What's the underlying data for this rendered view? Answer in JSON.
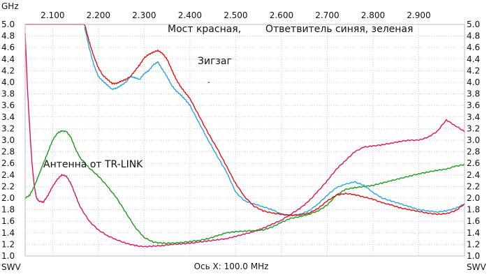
{
  "chart_data": {
    "type": "line",
    "top_axis_unit": "GHz",
    "xlabel": "Ось X: 100.0 MHz",
    "ylabel_left": "SWV",
    "ylabel_right": "SWV",
    "xlim": [
      2.04,
      3.0
    ],
    "ylim": [
      1.0,
      5.0
    ],
    "x_ticks": [
      2.1,
      2.2,
      2.3,
      2.4,
      2.5,
      2.6,
      2.7,
      2.8,
      2.9
    ],
    "x_tick_labels": [
      "2.100",
      "2.200",
      "2.300",
      "2.400",
      "2.500",
      "2.600",
      "2.700",
      "2.800",
      "2.900"
    ],
    "y_ticks": [
      1.0,
      1.2,
      1.4,
      1.6,
      1.8,
      2.0,
      2.2,
      2.4,
      2.6,
      2.8,
      3.0,
      3.2,
      3.4,
      3.6,
      3.8,
      4.0,
      4.2,
      4.4,
      4.6,
      4.8,
      5.0
    ],
    "y_tick_labels": [
      "1.0",
      "1.2",
      "1.4",
      "1.6",
      "1.8",
      "2.0",
      "2.2",
      "2.4",
      "2.6",
      "2.8",
      "3.0",
      "3.2",
      "3.4",
      "3.6",
      "3.8",
      "4.0",
      "4.2",
      "4.4",
      "4.6",
      "4.8",
      "5.0"
    ],
    "grid": true,
    "annotations": [
      "Мост красная,",
      "Ответвитель синяя, зеленая",
      "Зигзаг",
      "Антенна  от TR-LINK",
      "."
    ],
    "series": [
      {
        "color": "#e0115f",
        "x": [
          2.04,
          2.045,
          2.05,
          2.055,
          2.06,
          2.065,
          2.07,
          2.08,
          2.09,
          2.1,
          2.11,
          2.12,
          2.13,
          2.14,
          2.15,
          2.16,
          2.18,
          2.2,
          2.22,
          2.24,
          2.26,
          2.28,
          2.3,
          2.32,
          2.34,
          2.36,
          2.38,
          2.4,
          2.42,
          2.44,
          2.46,
          2.48,
          2.5,
          2.52,
          2.54,
          2.56,
          2.58,
          2.6,
          2.62,
          2.64,
          2.66,
          2.68,
          2.7,
          2.72,
          2.74,
          2.76,
          2.78,
          2.8,
          2.82,
          2.84,
          2.86,
          2.88,
          2.9,
          2.92,
          2.94,
          2.96,
          2.98,
          3.0
        ],
        "values": [
          4.85,
          3.9,
          3.2,
          2.6,
          2.2,
          2.0,
          1.95,
          1.93,
          2.05,
          2.2,
          2.32,
          2.4,
          2.38,
          2.25,
          2.05,
          1.85,
          1.6,
          1.45,
          1.35,
          1.28,
          1.22,
          1.18,
          1.16,
          1.17,
          1.18,
          1.2,
          1.21,
          1.22,
          1.24,
          1.26,
          1.28,
          1.3,
          1.34,
          1.38,
          1.42,
          1.48,
          1.55,
          1.62,
          1.72,
          1.82,
          1.95,
          2.12,
          2.3,
          2.5,
          2.65,
          2.8,
          2.88,
          2.9,
          2.92,
          2.95,
          2.98,
          3.0,
          3.0,
          3.05,
          3.15,
          3.35,
          3.25,
          3.15
        ]
      },
      {
        "color": "#1a9a1a",
        "x": [
          2.04,
          2.05,
          2.06,
          2.07,
          2.08,
          2.09,
          2.1,
          2.11,
          2.12,
          2.13,
          2.14,
          2.15,
          2.16,
          2.18,
          2.2,
          2.22,
          2.24,
          2.26,
          2.28,
          2.3,
          2.32,
          2.34,
          2.36,
          2.38,
          2.4,
          2.42,
          2.44,
          2.46,
          2.48,
          2.5,
          2.52,
          2.54,
          2.56,
          2.58,
          2.6,
          2.62,
          2.64,
          2.66,
          2.68,
          2.7,
          2.72,
          2.74,
          2.76,
          2.78,
          2.8,
          2.82,
          2.84,
          2.86,
          2.88,
          2.9,
          2.92,
          2.94,
          2.96,
          2.98,
          3.0
        ],
        "values": [
          2.0,
          2.05,
          2.2,
          2.4,
          2.6,
          2.8,
          3.0,
          3.12,
          3.16,
          3.15,
          3.05,
          2.85,
          2.7,
          2.52,
          2.38,
          2.2,
          2.0,
          1.75,
          1.5,
          1.32,
          1.24,
          1.22,
          1.22,
          1.23,
          1.25,
          1.27,
          1.3,
          1.35,
          1.4,
          1.42,
          1.43,
          1.44,
          1.45,
          1.5,
          1.58,
          1.65,
          1.68,
          1.72,
          1.78,
          1.88,
          2.05,
          2.15,
          2.18,
          2.2,
          2.22,
          2.26,
          2.3,
          2.34,
          2.38,
          2.42,
          2.45,
          2.48,
          2.5,
          2.55,
          2.58
        ]
      },
      {
        "color": "#2aa3e6",
        "x": [
          2.17,
          2.18,
          2.19,
          2.2,
          2.21,
          2.22,
          2.23,
          2.24,
          2.25,
          2.26,
          2.27,
          2.28,
          2.29,
          2.3,
          2.31,
          2.32,
          2.33,
          2.34,
          2.35,
          2.36,
          2.37,
          2.38,
          2.39,
          2.4,
          2.42,
          2.44,
          2.46,
          2.48,
          2.5,
          2.52,
          2.54,
          2.56,
          2.58,
          2.6,
          2.62,
          2.64,
          2.66,
          2.68,
          2.7,
          2.72,
          2.74,
          2.76,
          2.78,
          2.8,
          2.82,
          2.84,
          2.86,
          2.88,
          2.9,
          2.92,
          2.94,
          2.96,
          2.98,
          3.0
        ],
        "values": [
          4.95,
          4.6,
          4.3,
          4.1,
          4.02,
          3.95,
          3.88,
          3.9,
          3.95,
          4.0,
          4.1,
          4.08,
          4.05,
          4.15,
          4.2,
          4.3,
          4.35,
          4.22,
          4.1,
          3.95,
          3.85,
          3.78,
          3.7,
          3.6,
          3.3,
          3.0,
          2.72,
          2.45,
          2.1,
          1.95,
          1.9,
          1.85,
          1.8,
          1.72,
          1.7,
          1.72,
          1.78,
          1.9,
          2.05,
          2.18,
          2.24,
          2.28,
          2.22,
          2.1,
          2.0,
          1.95,
          1.9,
          1.85,
          1.8,
          1.78,
          1.76,
          1.78,
          1.82,
          1.9
        ]
      },
      {
        "color": "#e01010",
        "x": [
          2.04,
          2.06,
          2.08,
          2.1,
          2.12,
          2.14,
          2.15,
          2.16,
          2.17,
          2.18,
          2.19,
          2.2,
          2.21,
          2.22,
          2.23,
          2.24,
          2.25,
          2.26,
          2.27,
          2.28,
          2.29,
          2.3,
          2.31,
          2.32,
          2.33,
          2.34,
          2.35,
          2.36,
          2.37,
          2.38,
          2.39,
          2.4,
          2.42,
          2.44,
          2.46,
          2.48,
          2.5,
          2.52,
          2.54,
          2.56,
          2.58,
          2.6,
          2.62,
          2.64,
          2.66,
          2.68,
          2.7,
          2.72,
          2.74,
          2.76,
          2.78,
          2.8,
          2.82,
          2.84,
          2.86,
          2.88,
          2.9,
          2.92,
          2.94,
          2.96,
          2.98,
          3.0
        ],
        "values": [
          5.0,
          5.0,
          5.0,
          5.0,
          5.0,
          5.0,
          5.0,
          5.0,
          5.0,
          4.7,
          4.45,
          4.25,
          4.12,
          4.05,
          3.98,
          3.98,
          4.02,
          4.05,
          4.1,
          4.2,
          4.3,
          4.42,
          4.48,
          4.52,
          4.55,
          4.5,
          4.4,
          4.22,
          4.05,
          3.92,
          3.82,
          3.72,
          3.42,
          3.12,
          2.85,
          2.55,
          2.25,
          2.02,
          1.86,
          1.78,
          1.74,
          1.72,
          1.7,
          1.71,
          1.74,
          1.82,
          1.95,
          2.05,
          2.08,
          2.06,
          2.02,
          1.98,
          1.92,
          1.88,
          1.83,
          1.8,
          1.77,
          1.74,
          1.72,
          1.73,
          1.78,
          1.9
        ]
      }
    ]
  }
}
